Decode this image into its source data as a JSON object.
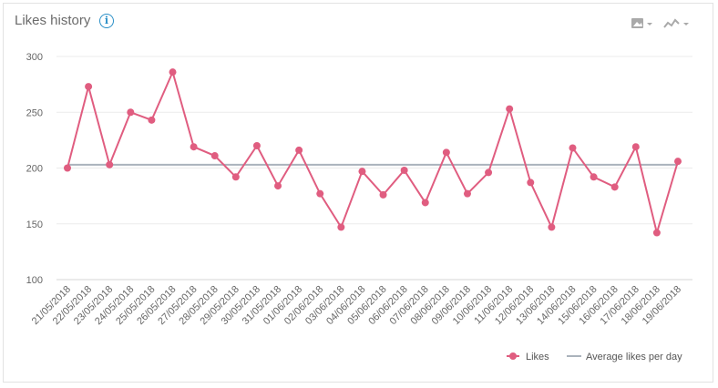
{
  "header": {
    "title": "Likes history",
    "info_icon": "info-circle-icon",
    "tools": [
      "image-export-icon",
      "line-chart-type-icon"
    ]
  },
  "colors": {
    "likes": "#e05d80",
    "average": "#aab3bc",
    "grid": "#ebebeb",
    "accent": "#2a8fc7"
  },
  "chart_data": {
    "type": "line",
    "title": "Likes history",
    "xlabel": "",
    "ylabel": "",
    "ylim": [
      100,
      300
    ],
    "yticks": [
      100,
      150,
      200,
      250,
      300
    ],
    "grid": true,
    "legend_position": "bottom-right",
    "categories": [
      "21/05/2018",
      "22/05/2018",
      "23/05/2018",
      "24/05/2018",
      "25/05/2018",
      "26/05/2018",
      "27/05/2018",
      "28/05/2018",
      "29/05/2018",
      "30/05/2018",
      "31/05/2018",
      "01/06/2018",
      "02/06/2018",
      "03/06/2018",
      "04/06/2018",
      "05/06/2018",
      "06/06/2018",
      "07/06/2018",
      "08/06/2018",
      "09/06/2018",
      "10/06/2018",
      "11/06/2018",
      "12/06/2018",
      "13/06/2018",
      "14/06/2018",
      "15/06/2018",
      "16/06/2018",
      "17/06/2018",
      "18/06/2018",
      "19/06/2018"
    ],
    "series": [
      {
        "name": "Likes",
        "values": [
          200,
          273,
          203,
          250,
          243,
          286,
          219,
          211,
          192,
          220,
          184,
          216,
          177,
          147,
          197,
          176,
          198,
          169,
          214,
          177,
          196,
          253,
          187,
          147,
          218,
          192,
          183,
          219,
          142,
          206
        ]
      },
      {
        "name": "Average likes per day",
        "values": [
          203,
          203,
          203,
          203,
          203,
          203,
          203,
          203,
          203,
          203,
          203,
          203,
          203,
          203,
          203,
          203,
          203,
          203,
          203,
          203,
          203,
          203,
          203,
          203,
          203,
          203,
          203,
          203,
          203,
          203
        ]
      }
    ]
  }
}
